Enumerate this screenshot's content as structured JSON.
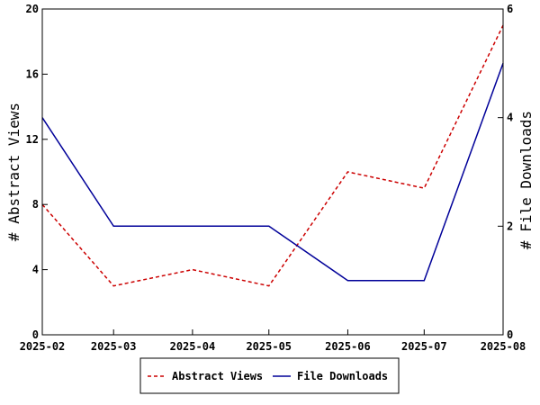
{
  "chart_data": {
    "type": "line",
    "x": [
      "2025-02",
      "2025-03",
      "2025-04",
      "2025-05",
      "2025-06",
      "2025-07",
      "2025-08"
    ],
    "x_dates": [
      "2025-02-01",
      "2025-03-01",
      "2025-04-01",
      "2025-05-01",
      "2025-06-01",
      "2025-07-01",
      "2025-08-01"
    ],
    "y_left": {
      "label": "# Abstract Views",
      "ylim": [
        0,
        20
      ],
      "ticks": [
        "0",
        "4",
        "8",
        "12",
        "16",
        "20"
      ]
    },
    "y_right": {
      "label": "# File Downloads",
      "ylim": [
        0,
        6
      ],
      "ticks": [
        "0",
        "2",
        "4",
        "6"
      ]
    },
    "series": [
      {
        "name": "Abstract Views",
        "axis": "left",
        "color": "#cc0000",
        "dashed": true,
        "values": [
          8,
          3,
          4,
          3,
          10,
          9,
          19
        ]
      },
      {
        "name": "File Downloads",
        "axis": "right",
        "color": "#000099",
        "dashed": false,
        "values": [
          4,
          2,
          2,
          2,
          1,
          1,
          5
        ]
      }
    ],
    "legend_position": "bottom-center",
    "grid": false
  }
}
